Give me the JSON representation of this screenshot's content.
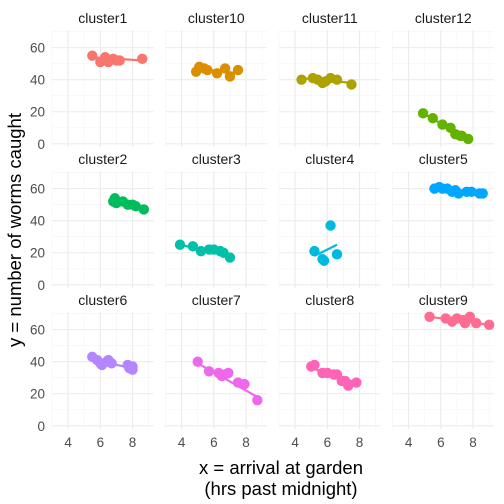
{
  "chart_data": {
    "type": "scatter",
    "facet_layout": {
      "ncol": 4,
      "nrow": 3
    },
    "xlabel": [
      "x = arrival at garden",
      "(hrs past midnight)"
    ],
    "ylabel": "y = number of worms caught",
    "xlim": [
      3,
      9.3
    ],
    "ylim": [
      -2,
      71
    ],
    "x_ticks": [
      4,
      6,
      8
    ],
    "y_ticks": [
      0,
      20,
      40,
      60
    ],
    "grid": true,
    "legend": "none",
    "facets": [
      {
        "name": "cluster1",
        "color": "#F8766D",
        "points": [
          [
            5.5,
            55
          ],
          [
            6.0,
            51
          ],
          [
            6.3,
            54
          ],
          [
            6.5,
            51
          ],
          [
            6.8,
            53
          ],
          [
            7.0,
            52
          ],
          [
            7.2,
            52
          ],
          [
            8.6,
            53
          ]
        ],
        "fit": [
          [
            5.5,
            54
          ],
          [
            8.6,
            52
          ]
        ]
      },
      {
        "name": "cluster10",
        "color": "#DB8E00",
        "points": [
          [
            4.9,
            45
          ],
          [
            5.1,
            48
          ],
          [
            5.4,
            47
          ],
          [
            5.6,
            46
          ],
          [
            6.2,
            44
          ],
          [
            6.7,
            47
          ],
          [
            7.0,
            42
          ],
          [
            7.5,
            46
          ]
        ],
        "fit": [
          [
            4.9,
            47
          ],
          [
            7.5,
            44
          ]
        ]
      },
      {
        "name": "cluster11",
        "color": "#AEA200",
        "points": [
          [
            4.4,
            40
          ],
          [
            5.1,
            41
          ],
          [
            5.4,
            40
          ],
          [
            5.7,
            38
          ],
          [
            5.9,
            39
          ],
          [
            6.2,
            41
          ],
          [
            6.6,
            40
          ],
          [
            7.5,
            37
          ]
        ],
        "fit": [
          [
            4.4,
            41
          ],
          [
            7.5,
            38
          ]
        ]
      },
      {
        "name": "cluster12",
        "color": "#64B200",
        "points": [
          [
            4.9,
            19
          ],
          [
            5.5,
            16
          ],
          [
            6.1,
            12
          ],
          [
            6.6,
            10
          ],
          [
            6.9,
            6
          ],
          [
            7.2,
            5
          ],
          [
            7.3,
            5
          ],
          [
            7.7,
            3
          ]
        ],
        "fit": [
          [
            4.9,
            19
          ],
          [
            7.7,
            3
          ]
        ]
      },
      {
        "name": "cluster2",
        "color": "#00BD5C",
        "points": [
          [
            6.8,
            52
          ],
          [
            6.9,
            54
          ],
          [
            7.0,
            51
          ],
          [
            7.4,
            52
          ],
          [
            7.7,
            50
          ],
          [
            8.0,
            50
          ],
          [
            8.2,
            49
          ],
          [
            8.7,
            47
          ]
        ],
        "fit": [
          [
            6.8,
            53
          ],
          [
            8.7,
            47
          ]
        ]
      },
      {
        "name": "cluster3",
        "color": "#00C1A7",
        "points": [
          [
            3.9,
            25
          ],
          [
            4.7,
            24
          ],
          [
            5.2,
            21
          ],
          [
            5.7,
            22
          ],
          [
            6.0,
            22
          ],
          [
            6.4,
            21
          ],
          [
            6.6,
            20
          ],
          [
            7.0,
            17
          ]
        ],
        "fit": [
          [
            3.9,
            25
          ],
          [
            7.0,
            18
          ]
        ]
      },
      {
        "name": "cluster4",
        "color": "#00BADE",
        "points": [
          [
            5.2,
            21
          ],
          [
            5.7,
            16
          ],
          [
            5.8,
            15
          ],
          [
            6.2,
            37
          ],
          [
            6.6,
            19
          ]
        ],
        "fit": [
          [
            5.2,
            18
          ],
          [
            6.6,
            25
          ]
        ]
      },
      {
        "name": "cluster5",
        "color": "#00A6FF",
        "points": [
          [
            5.6,
            60
          ],
          [
            5.9,
            61
          ],
          [
            6.1,
            60
          ],
          [
            6.4,
            60
          ],
          [
            6.7,
            58
          ],
          [
            6.9,
            59
          ],
          [
            7.1,
            57
          ],
          [
            7.6,
            58
          ],
          [
            7.9,
            58
          ],
          [
            8.4,
            57
          ],
          [
            8.6,
            57
          ]
        ],
        "fit": [
          [
            5.6,
            61
          ],
          [
            8.6,
            57
          ]
        ]
      },
      {
        "name": "cluster6",
        "color": "#B385FF",
        "points": [
          [
            5.5,
            43
          ],
          [
            5.8,
            41
          ],
          [
            6.0,
            39
          ],
          [
            6.1,
            38
          ],
          [
            6.4,
            40
          ],
          [
            6.5,
            41
          ],
          [
            6.7,
            39
          ],
          [
            7.7,
            38
          ],
          [
            7.8,
            36
          ],
          [
            8.0,
            35
          ],
          [
            8.0,
            37
          ]
        ],
        "fit": [
          [
            5.5,
            41
          ],
          [
            8.0,
            36
          ]
        ]
      },
      {
        "name": "cluster7",
        "color": "#EF67EB",
        "points": [
          [
            5.0,
            40
          ],
          [
            5.7,
            34
          ],
          [
            6.3,
            33
          ],
          [
            6.5,
            31
          ],
          [
            6.7,
            32
          ],
          [
            6.9,
            33
          ],
          [
            7.5,
            27
          ],
          [
            7.9,
            26
          ],
          [
            8.7,
            16
          ]
        ],
        "fit": [
          [
            5.0,
            39
          ],
          [
            8.7,
            18
          ]
        ]
      },
      {
        "name": "cluster8",
        "color": "#FF63B6",
        "points": [
          [
            5.0,
            37
          ],
          [
            5.2,
            38
          ],
          [
            5.7,
            33
          ],
          [
            6.0,
            33
          ],
          [
            6.4,
            32
          ],
          [
            6.6,
            32
          ],
          [
            6.9,
            28
          ],
          [
            7.1,
            28
          ],
          [
            7.3,
            25
          ],
          [
            7.8,
            27
          ]
        ],
        "fit": [
          [
            5.0,
            36
          ],
          [
            7.8,
            27
          ]
        ]
      },
      {
        "name": "cluster9",
        "color": "#FF6C91",
        "points": [
          [
            5.3,
            68
          ],
          [
            6.3,
            67
          ],
          [
            6.7,
            65
          ],
          [
            7.0,
            67
          ],
          [
            7.4,
            66
          ],
          [
            7.5,
            64
          ],
          [
            7.8,
            68
          ],
          [
            8.2,
            64
          ],
          [
            9.0,
            63
          ]
        ],
        "fit": [
          [
            5.3,
            68
          ],
          [
            9.0,
            63
          ]
        ]
      }
    ]
  }
}
